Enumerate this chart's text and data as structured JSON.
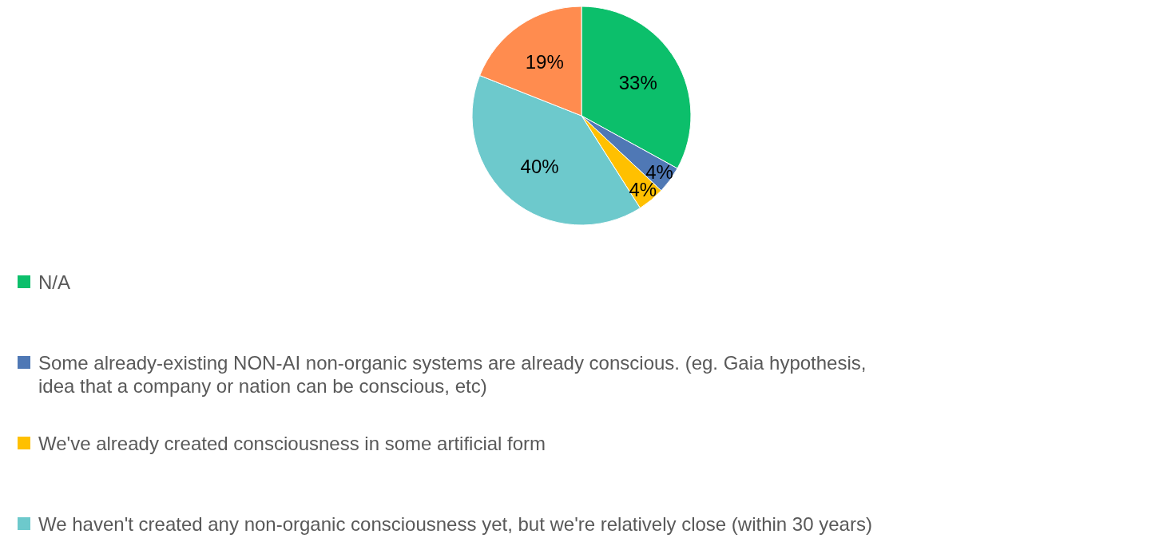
{
  "chart_data": {
    "type": "pie",
    "categories": [
      "N/A",
      "Some already-existing NON-AI non-organic systems are already conscious. (eg. Gaia hypothesis, idea that a company or nation can be conscious, etc)",
      "We've already created consciousness in some artificial form",
      "We haven't created any non-organic consciousness yet, but we're relatively close (within 30 years)",
      null
    ],
    "values": [
      33,
      4,
      4,
      40,
      19
    ],
    "colors": [
      "#0cbf6b",
      "#4f78b5",
      "#ffc000",
      "#6dc9cc",
      "#ff8c4f"
    ],
    "value_labels": [
      "33%",
      "4%",
      "4%",
      "40%",
      "19%"
    ],
    "legend": "bottom"
  }
}
